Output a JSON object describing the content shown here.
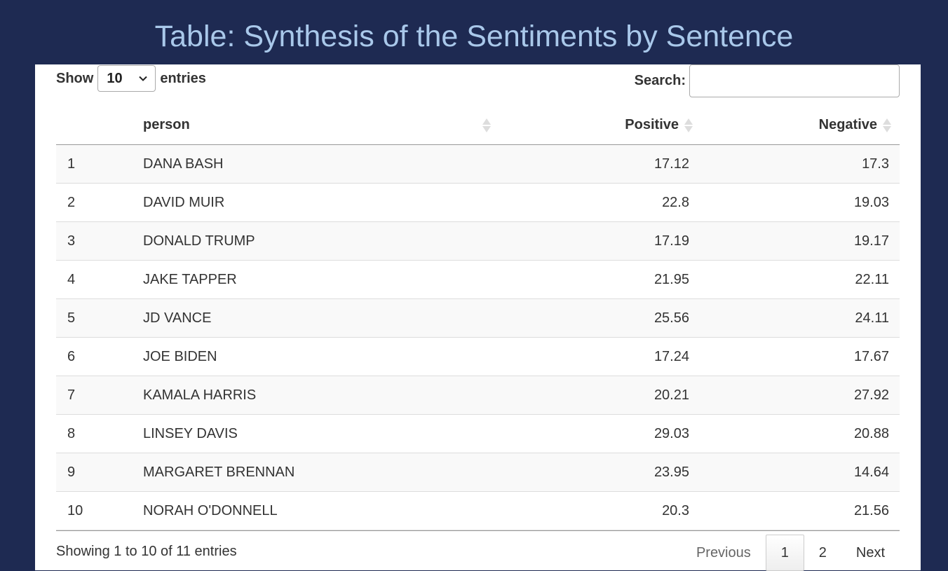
{
  "page": {
    "title": "Table: Synthesis of the Sentiments by Sentence"
  },
  "length_control": {
    "show_label": "Show",
    "selected": "10",
    "entries_label": "entries"
  },
  "search": {
    "label": "Search:",
    "value": "",
    "placeholder": ""
  },
  "table": {
    "columns": [
      "",
      "person",
      "Positive",
      "Negative"
    ],
    "rows": [
      {
        "index": "1",
        "person": "DANA BASH",
        "positive": "17.12",
        "negative": "17.3"
      },
      {
        "index": "2",
        "person": "DAVID MUIR",
        "positive": "22.8",
        "negative": "19.03"
      },
      {
        "index": "3",
        "person": "DONALD TRUMP",
        "positive": "17.19",
        "negative": "19.17"
      },
      {
        "index": "4",
        "person": "JAKE TAPPER",
        "positive": "21.95",
        "negative": "22.11"
      },
      {
        "index": "5",
        "person": "JD VANCE",
        "positive": "25.56",
        "negative": "24.11"
      },
      {
        "index": "6",
        "person": "JOE BIDEN",
        "positive": "17.24",
        "negative": "17.67"
      },
      {
        "index": "7",
        "person": "KAMALA HARRIS",
        "positive": "20.21",
        "negative": "27.92"
      },
      {
        "index": "8",
        "person": "LINSEY DAVIS",
        "positive": "29.03",
        "negative": "20.88"
      },
      {
        "index": "9",
        "person": "MARGARET BRENNAN",
        "positive": "23.95",
        "negative": "14.64"
      },
      {
        "index": "10",
        "person": "NORAH O'DONNELL",
        "positive": "20.3",
        "negative": "21.56"
      }
    ]
  },
  "footer": {
    "info": "Showing 1 to 10 of 11 entries",
    "pagination": {
      "previous": "Previous",
      "pages": [
        "1",
        "2"
      ],
      "next": "Next"
    }
  }
}
